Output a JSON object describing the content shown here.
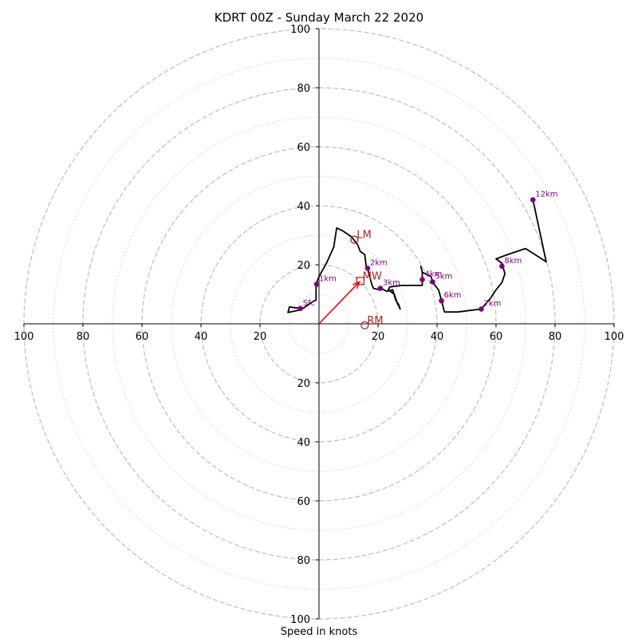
{
  "chart_data": {
    "type": "hodograph",
    "title": "KDRT 00Z - Sunday March 22 2020",
    "xlabel": "Speed in knots",
    "units": "knots",
    "xlim": [
      -100,
      100
    ],
    "ylim": [
      -100,
      100
    ],
    "ring_major": [
      20,
      40,
      60,
      80,
      100
    ],
    "ring_minor": [
      10,
      30,
      50,
      70,
      90
    ],
    "tick_labels": {
      "x_left": [
        "100",
        "80",
        "60",
        "40",
        "20"
      ],
      "x_right": [
        "20",
        "40",
        "60",
        "80",
        "100"
      ],
      "y_up": [
        "20",
        "40",
        "60",
        "80",
        "100"
      ],
      "y_down": [
        "20",
        "40",
        "60",
        "80",
        "100"
      ]
    },
    "trace": {
      "color": "#000000",
      "points": [
        [
          -6.3,
          5.2
        ],
        [
          -10,
          5.7
        ],
        [
          -10.5,
          3.8
        ],
        [
          -6,
          4.8
        ],
        [
          -2,
          7.6
        ],
        [
          -1,
          8
        ],
        [
          -1,
          12
        ],
        [
          -1,
          13.5
        ],
        [
          0,
          16
        ],
        [
          2.5,
          20.5
        ],
        [
          5,
          26
        ],
        [
          6,
          32.5
        ],
        [
          8,
          31.5
        ],
        [
          11,
          29.5
        ],
        [
          13,
          27
        ],
        [
          14,
          24.5
        ],
        [
          15.5,
          23.5
        ],
        [
          16,
          19.5
        ],
        [
          16.5,
          18.5
        ],
        [
          18,
          13
        ],
        [
          18.5,
          12
        ],
        [
          20.5,
          11.5
        ],
        [
          21,
          12
        ],
        [
          23,
          11
        ],
        [
          25,
          11.5
        ],
        [
          26,
          8
        ],
        [
          27,
          6.5
        ],
        [
          27.5,
          5
        ],
        [
          26.5,
          7
        ],
        [
          25.5,
          10
        ],
        [
          23.5,
          11.5
        ],
        [
          24,
          12.5
        ],
        [
          28,
          13
        ],
        [
          32,
          13
        ],
        [
          35,
          13
        ],
        [
          35,
          17.5
        ],
        [
          34.5,
          19.5
        ],
        [
          35,
          17.5
        ],
        [
          38,
          16
        ],
        [
          38.5,
          14
        ],
        [
          40.5,
          11.5
        ],
        [
          41.5,
          8
        ],
        [
          42.5,
          4
        ],
        [
          43,
          4
        ],
        [
          47,
          4
        ],
        [
          55,
          5
        ],
        [
          58,
          8.5
        ],
        [
          60,
          11.5
        ],
        [
          62,
          14
        ],
        [
          63,
          17
        ],
        [
          62,
          20.5
        ],
        [
          60,
          22
        ],
        [
          64,
          23.5
        ],
        [
          70,
          25.5
        ],
        [
          77,
          21
        ],
        [
          72.5,
          42
        ]
      ]
    },
    "height_labels": [
      {
        "label": "Sfc",
        "u": -6.3,
        "v": 5.2
      },
      {
        "label": "1km",
        "u": -0.8,
        "v": 13.4
      },
      {
        "label": "2km",
        "u": 16.5,
        "v": 18.8
      },
      {
        "label": "3km",
        "u": 20.8,
        "v": 12
      },
      {
        "label": "4km",
        "u": 35,
        "v": 15
      },
      {
        "label": "5km",
        "u": 38.5,
        "v": 14.2
      },
      {
        "label": "6km",
        "u": 41.5,
        "v": 7.8
      },
      {
        "label": "7km",
        "u": 55,
        "v": 5
      },
      {
        "label": "8km",
        "u": 62,
        "v": 19.5
      },
      {
        "label": "12km",
        "u": 72.5,
        "v": 42
      }
    ],
    "storm_motion": {
      "LM": {
        "label": "LM",
        "u": 12,
        "v": 28.5
      },
      "RM": {
        "label": "RM",
        "u": 15.5,
        "v": -0.5
      },
      "MW": {
        "label": "MW",
        "u": 14,
        "v": 14.5
      },
      "arrow_end": {
        "u": 13.7,
        "v": 14.2
      }
    },
    "colors": {
      "trace": "#000000",
      "height_marker": "#800080",
      "storm_marker": "#b22222",
      "arrow": "#ff0000",
      "grid": "#bdbdbd"
    }
  }
}
